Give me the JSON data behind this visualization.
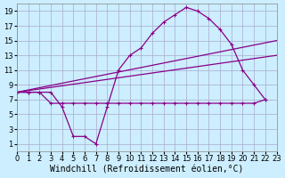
{
  "background_color": "#cceeff",
  "grid_color": "#aaaacc",
  "line_color": "#880088",
  "xlim": [
    0,
    23
  ],
  "ylim": [
    0,
    20
  ],
  "xticks": [
    0,
    1,
    2,
    3,
    4,
    5,
    6,
    7,
    8,
    9,
    10,
    11,
    12,
    13,
    14,
    15,
    16,
    17,
    18,
    19,
    20,
    21,
    22,
    23
  ],
  "yticks": [
    1,
    3,
    5,
    7,
    9,
    11,
    13,
    15,
    17,
    19
  ],
  "xlabel": "Windchill (Refroidissement éolien,°C)",
  "series1_x": [
    0,
    1,
    2,
    3,
    4,
    5,
    6,
    7,
    8,
    9,
    10,
    11,
    12,
    13,
    14,
    15,
    16,
    17,
    18,
    19,
    20,
    21,
    22
  ],
  "series1_y": [
    8,
    8,
    8,
    8,
    6,
    2,
    2,
    1,
    6,
    11,
    13,
    14,
    16,
    17.5,
    18.5,
    19.5,
    19,
    18,
    16.5,
    14.5,
    11,
    9,
    7
  ],
  "series2_x": [
    0,
    1,
    2,
    3,
    4,
    5,
    6,
    7,
    8,
    9,
    10,
    11,
    12,
    13,
    14,
    15,
    16,
    17,
    18,
    19,
    20,
    21,
    22
  ],
  "series2_y": [
    8,
    8,
    8,
    6.5,
    6.5,
    6.5,
    6.5,
    6.5,
    6.5,
    6.5,
    6.5,
    6.5,
    6.5,
    6.5,
    6.5,
    6.5,
    6.5,
    6.5,
    6.5,
    6.5,
    6.5,
    6.5,
    7
  ],
  "series3_x": [
    0,
    23
  ],
  "series3_y": [
    8,
    13
  ],
  "series4_x": [
    0,
    23
  ],
  "series4_y": [
    8,
    15
  ],
  "axis_fontsize": 7,
  "tick_fontsize": 6
}
